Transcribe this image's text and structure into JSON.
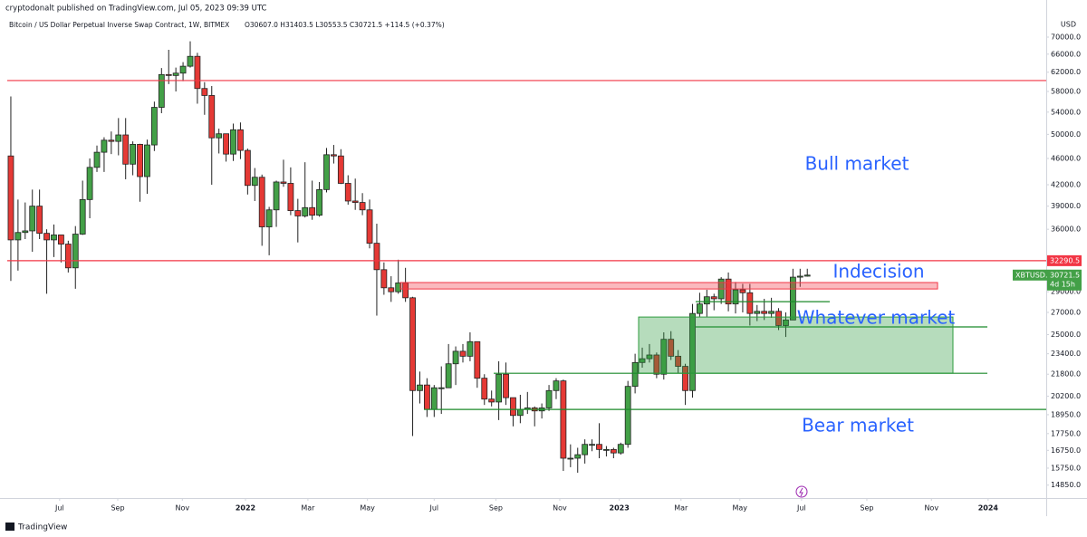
{
  "header": {
    "author_line": "cryptodonalt published on TradingView.com, Jul 05, 2023 09:39 UTC",
    "symbol": "Bitcoin / US Dollar Perpetual Inverse Swap Contract, 1W, BITMEX",
    "ohlc": "O30607.0 H31403.5 L30553.5 C30721.5 +114.5 (+0.37%)",
    "footer": "TradingView"
  },
  "chart_data": {
    "type": "candlestick",
    "y_unit": "USD",
    "log_scale": true,
    "grid": false,
    "xlim": [
      -0.5,
      144.3
    ],
    "xticks": [
      {
        "value": 6.8,
        "label": "Jul"
      },
      {
        "value": 14.9,
        "label": "Sep"
      },
      {
        "value": 23.9,
        "label": "Nov"
      },
      {
        "value": 32.7,
        "label": "2022"
      },
      {
        "value": 41.4,
        "label": "Mar"
      },
      {
        "value": 49.7,
        "label": "May"
      },
      {
        "value": 59.0,
        "label": "Jul"
      },
      {
        "value": 67.6,
        "label": "Sep"
      },
      {
        "value": 76.5,
        "label": "Nov"
      },
      {
        "value": 84.8,
        "label": "2023"
      },
      {
        "value": 93.4,
        "label": "Mar"
      },
      {
        "value": 101.6,
        "label": "May"
      },
      {
        "value": 110.2,
        "label": "Jul"
      },
      {
        "value": 119.3,
        "label": "Sep"
      },
      {
        "value": 128.3,
        "label": "Nov"
      },
      {
        "value": 136.2,
        "label": "2024"
      }
    ],
    "ylim": [
      14200,
      77630
    ],
    "yticks": [
      {
        "value": 70000,
        "label": "70000.0"
      },
      {
        "value": 66000,
        "label": "66000.0"
      },
      {
        "value": 62000,
        "label": "62000.0"
      },
      {
        "value": 58000,
        "label": "58000.0"
      },
      {
        "value": 54000,
        "label": "54000.0"
      },
      {
        "value": 50000,
        "label": "50000.0"
      },
      {
        "value": 46000,
        "label": "46000.0"
      },
      {
        "value": 42000,
        "label": "42000.0"
      },
      {
        "value": 39000,
        "label": "39000.0"
      },
      {
        "value": 36000,
        "label": "36000.0"
      },
      {
        "value": 29000,
        "label": "29000.0"
      },
      {
        "value": 27000,
        "label": "27000.0"
      },
      {
        "value": 25000,
        "label": "25000.0"
      },
      {
        "value": 23400,
        "label": "23400.0"
      },
      {
        "value": 21800,
        "label": "21800.0"
      },
      {
        "value": 20200,
        "label": "20200.0"
      },
      {
        "value": 18950,
        "label": "18950.0"
      },
      {
        "value": 17750,
        "label": "17750.0"
      },
      {
        "value": 16750,
        "label": "16750.0"
      },
      {
        "value": 15750,
        "label": "15750.0"
      },
      {
        "value": 14850,
        "label": "14850.0"
      }
    ],
    "series": [
      {
        "name": "XBTUSD.P",
        "up_color": "#43a047",
        "down_color": "#e53935",
        "open": [
          46400,
          34700,
          35600,
          35800,
          39000,
          35500,
          34700,
          35300,
          34200,
          31500,
          35400,
          39900,
          44600,
          47000,
          49000,
          48800,
          49900,
          45100,
          48300,
          43200,
          48200,
          54900,
          61500,
          61300,
          61800,
          63300,
          65500,
          58600,
          57200,
          49400,
          50100,
          46700,
          50800,
          47300,
          41900,
          43100,
          36300,
          38500,
          42400,
          42200,
          38400,
          37700,
          38800,
          37800,
          41300,
          46600,
          46400,
          42200,
          39700,
          39500,
          38500,
          34300,
          31300,
          29400,
          29000,
          29900,
          28400,
          20600,
          21000,
          19300,
          20800,
          20800,
          22600,
          23600,
          23200,
          24400,
          21500,
          20000,
          19800,
          21800,
          20100,
          18900,
          19300,
          19400,
          19200,
          19400,
          20600,
          21300,
          16300,
          16300,
          16500,
          17100,
          17100,
          16800,
          16800,
          16600,
          17100,
          20900,
          22700,
          23000,
          23300,
          21800,
          24600,
          23200,
          22400,
          20600,
          26900,
          27800,
          28500,
          28300,
          30300,
          27800,
          29200,
          28900,
          26900,
          27100,
          26900,
          27100,
          25800,
          26300,
          30500,
          30607
        ],
        "high": [
          57000,
          39900,
          39500,
          41300,
          41300,
          36000,
          36600,
          35100,
          34600,
          36400,
          42600,
          46000,
          48100,
          49500,
          50500,
          52900,
          52900,
          48800,
          48400,
          49100,
          56000,
          62900,
          67000,
          63000,
          64200,
          69000,
          66300,
          59900,
          59100,
          51000,
          50100,
          51900,
          52100,
          47600,
          44500,
          43500,
          38900,
          42600,
          45800,
          44600,
          40000,
          45400,
          42600,
          42400,
          47700,
          48200,
          47500,
          43400,
          42900,
          40800,
          39900,
          36700,
          32100,
          30600,
          32400,
          31500,
          28500,
          22000,
          21500,
          21000,
          22400,
          24200,
          24000,
          24200,
          25200,
          24400,
          21800,
          20600,
          22800,
          22700,
          19900,
          20300,
          20500,
          19500,
          19700,
          21000,
          21500,
          21400,
          17100,
          16900,
          17400,
          17400,
          18400,
          17000,
          16900,
          17200,
          21300,
          23400,
          23900,
          24200,
          23500,
          25200,
          25300,
          23700,
          22600,
          27800,
          28900,
          29200,
          28800,
          30500,
          31000,
          30000,
          29800,
          29800,
          27700,
          28300,
          28400,
          27400,
          27000,
          31400,
          31400,
          31403.5
        ],
        "low": [
          30100,
          31200,
          34800,
          33300,
          34800,
          28800,
          32700,
          32100,
          31000,
          29300,
          35300,
          37400,
          43900,
          43900,
          46700,
          46500,
          42800,
          43400,
          39600,
          40700,
          47200,
          53800,
          59500,
          58000,
          60100,
          63000,
          55600,
          53500,
          42000,
          46800,
          45500,
          45600,
          45900,
          40600,
          39700,
          34000,
          32900,
          36300,
          41700,
          37800,
          34400,
          37500,
          37200,
          37600,
          40900,
          45200,
          42100,
          39200,
          38500,
          37800,
          33700,
          26700,
          28700,
          28000,
          28800,
          28000,
          17600,
          19700,
          18800,
          18800,
          19000,
          20800,
          21000,
          22700,
          22800,
          20800,
          19600,
          19500,
          18600,
          19600,
          18200,
          18400,
          19000,
          18200,
          18700,
          19200,
          20000,
          15600,
          15800,
          15500,
          16000,
          16700,
          16300,
          16400,
          16300,
          16500,
          16900,
          20400,
          22300,
          22700,
          21500,
          21400,
          22900,
          21900,
          19600,
          20100,
          26600,
          26600,
          27200,
          27800,
          27100,
          26900,
          27000,
          25800,
          26200,
          26300,
          26500,
          25400,
          24800,
          26300,
          29500,
          30553.5
        ],
        "close": [
          34700,
          35600,
          35800,
          39000,
          35500,
          34700,
          35300,
          34200,
          31500,
          35400,
          39900,
          44600,
          47000,
          49000,
          48800,
          49900,
          45100,
          48300,
          43200,
          48200,
          54900,
          61500,
          61300,
          61800,
          63300,
          65500,
          58600,
          57200,
          49400,
          50100,
          46700,
          50800,
          47300,
          41900,
          43100,
          36300,
          38500,
          42400,
          42200,
          38400,
          37700,
          38800,
          37800,
          41300,
          46600,
          46400,
          42200,
          39700,
          39500,
          38500,
          34300,
          31300,
          29400,
          29000,
          29900,
          28400,
          20600,
          21000,
          19300,
          20800,
          20800,
          22600,
          23600,
          23200,
          24400,
          21500,
          20000,
          19800,
          21800,
          20100,
          18900,
          19300,
          19400,
          19200,
          19400,
          20600,
          21300,
          16300,
          16300,
          16500,
          17100,
          17100,
          16800,
          16800,
          16600,
          17100,
          20900,
          22700,
          23000,
          23300,
          21800,
          24600,
          23200,
          22400,
          20600,
          26900,
          27800,
          28500,
          28300,
          30300,
          27800,
          29200,
          28900,
          26900,
          27100,
          26900,
          27100,
          25800,
          26300,
          30500,
          30607,
          30721.5
        ]
      }
    ],
    "countdown": "4d 15h",
    "levels": [
      60240,
      32290.5
    ],
    "level_color": "#f23645",
    "support_lines": [
      28020,
      25680,
      21870,
      19300
    ],
    "support_color": "#1b8a2a",
    "zones": [
      {
        "low": 29280,
        "high": 29940,
        "color": "#f23645"
      },
      {
        "low": 21870,
        "high": 26570,
        "color": "#2e9b3e"
      }
    ],
    "annotations": [
      "Bull market",
      "Indecision",
      "Whatever market",
      "Bear market"
    ]
  }
}
